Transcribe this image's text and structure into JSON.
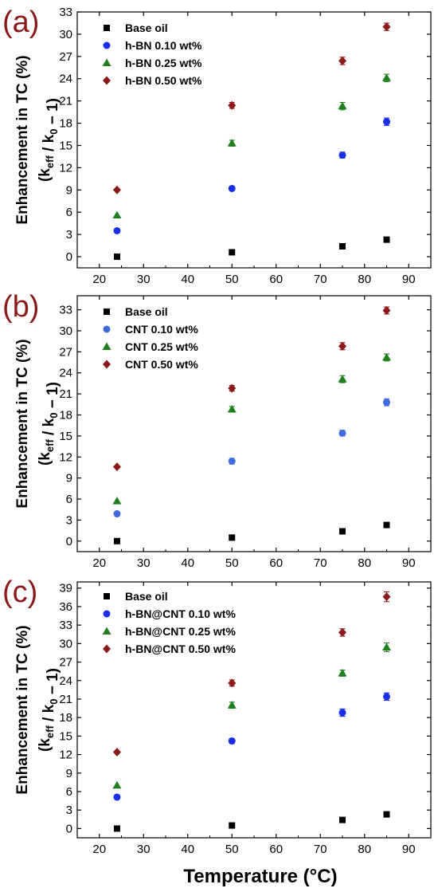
{
  "figure": {
    "xlabel": "Temperature (°C)"
  },
  "chart_data": [
    {
      "type": "scatter",
      "panel_label": "(a)",
      "ylabel": "Enhancement in TC (%)",
      "ylabel2": "(k_eff / k_0 − 1)",
      "xlim": [
        15,
        95
      ],
      "ylim": [
        -1.5,
        33
      ],
      "xticks": [
        20,
        30,
        40,
        50,
        60,
        70,
        80,
        90
      ],
      "yticks": [
        0,
        3,
        6,
        9,
        12,
        15,
        18,
        21,
        24,
        27,
        30,
        33
      ],
      "grid": false,
      "legend_position": "top-left",
      "series": [
        {
          "name": "Base oil",
          "marker": "square",
          "color": "#000000",
          "x": [
            24,
            50,
            75,
            85
          ],
          "y": [
            0,
            0.6,
            1.4,
            2.3
          ],
          "err": [
            0,
            0,
            0,
            0
          ]
        },
        {
          "name": "h-BN 0.10 wt%",
          "marker": "circle",
          "color": "#1a2ee8",
          "x": [
            24,
            50,
            75,
            85
          ],
          "y": [
            3.5,
            9.2,
            13.7,
            18.2
          ],
          "err": [
            0,
            0,
            0.4,
            0.5
          ]
        },
        {
          "name": "h-BN 0.25 wt%",
          "marker": "triangle",
          "color": "#208020",
          "x": [
            24,
            50,
            75,
            85
          ],
          "y": [
            5.6,
            15.3,
            20.3,
            24.1
          ],
          "err": [
            0,
            0.4,
            0.5,
            0.5
          ]
        },
        {
          "name": "h-BN 0.50 wt%",
          "marker": "diamond",
          "color": "#8b1a1a",
          "x": [
            24,
            50,
            75,
            85
          ],
          "y": [
            9,
            20.4,
            26.4,
            31
          ],
          "err": [
            0,
            0.4,
            0.5,
            0.5
          ]
        }
      ]
    },
    {
      "type": "scatter",
      "panel_label": "(b)",
      "ylabel": "Enhancement in TC (%)",
      "ylabel2": "(k_eff / k_0 − 1)",
      "xlim": [
        15,
        95
      ],
      "ylim": [
        -1.5,
        35
      ],
      "xticks": [
        20,
        30,
        40,
        50,
        60,
        70,
        80,
        90
      ],
      "yticks": [
        0,
        3,
        6,
        9,
        12,
        15,
        18,
        21,
        24,
        27,
        30,
        33
      ],
      "grid": false,
      "legend_position": "top-left",
      "series": [
        {
          "name": "Base oil",
          "marker": "square",
          "color": "#000000",
          "x": [
            24,
            50,
            75,
            85
          ],
          "y": [
            0,
            0.5,
            1.4,
            2.3
          ],
          "err": [
            0,
            0,
            0,
            0
          ]
        },
        {
          "name": "CNT  0.10 wt%",
          "marker": "circle",
          "color": "#3f6ae0",
          "x": [
            24,
            50,
            75,
            85
          ],
          "y": [
            3.9,
            11.4,
            15.4,
            19.8
          ],
          "err": [
            0,
            0.4,
            0.4,
            0.5
          ]
        },
        {
          "name": "CNT  0.25 wt%",
          "marker": "triangle",
          "color": "#208020",
          "x": [
            24,
            50,
            75,
            85
          ],
          "y": [
            5.7,
            18.8,
            23.1,
            26.2
          ],
          "err": [
            0,
            0.4,
            0.5,
            0.5
          ]
        },
        {
          "name": "CNT  0.50 wt%",
          "marker": "diamond",
          "color": "#8b1a1a",
          "x": [
            24,
            50,
            75,
            85
          ],
          "y": [
            10.6,
            21.8,
            27.8,
            32.9
          ],
          "err": [
            0,
            0.4,
            0.5,
            0.5
          ]
        }
      ]
    },
    {
      "type": "scatter",
      "panel_label": "(c)",
      "ylabel": "Enhancement in TC (%)",
      "ylabel2": "(k_eff / k_0 − 1)",
      "xlim": [
        15,
        95
      ],
      "ylim": [
        -1.5,
        40
      ],
      "xticks": [
        20,
        30,
        40,
        50,
        60,
        70,
        80,
        90
      ],
      "yticks": [
        0,
        3,
        6,
        9,
        12,
        15,
        18,
        21,
        24,
        27,
        30,
        33,
        36,
        39
      ],
      "grid": false,
      "legend_position": "top-left",
      "series": [
        {
          "name": "Base oil",
          "marker": "square",
          "color": "#000000",
          "x": [
            24,
            50,
            75,
            85
          ],
          "y": [
            0,
            0.5,
            1.4,
            2.3
          ],
          "err": [
            0,
            0,
            0,
            0
          ]
        },
        {
          "name": "h-BN@CNT  0.10 wt%",
          "marker": "circle",
          "color": "#1a2ee8",
          "x": [
            24,
            50,
            75,
            85
          ],
          "y": [
            5.1,
            14.2,
            18.8,
            21.4
          ],
          "err": [
            0,
            0.4,
            0.6,
            0.6
          ]
        },
        {
          "name": "h-BN@CNT  0.25 wt%",
          "marker": "triangle",
          "color": "#208020",
          "x": [
            24,
            50,
            75,
            85
          ],
          "y": [
            7,
            20,
            25.2,
            29.4
          ],
          "err": [
            0,
            0.5,
            0.5,
            0.7
          ]
        },
        {
          "name": "h-BN@CNT  0.50 wt%",
          "marker": "diamond",
          "color": "#8b1a1a",
          "x": [
            24,
            50,
            75,
            85
          ],
          "y": [
            12.4,
            23.6,
            31.8,
            37.6
          ],
          "err": [
            0,
            0.5,
            0.6,
            0.8
          ]
        }
      ]
    }
  ]
}
